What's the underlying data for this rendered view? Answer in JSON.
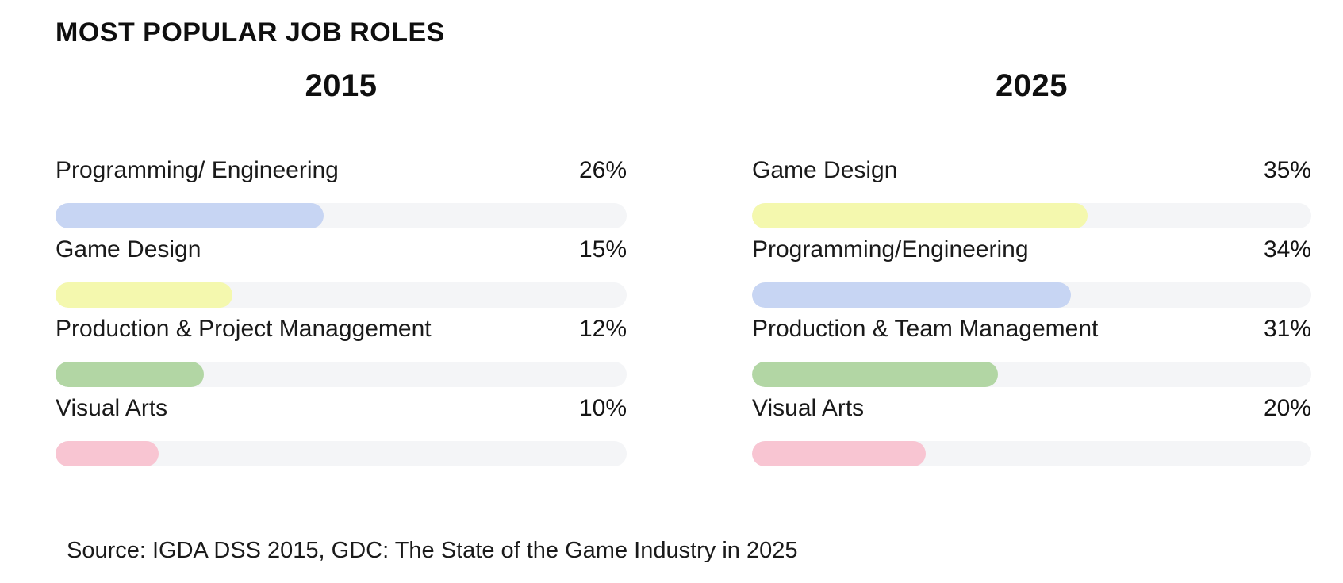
{
  "title": "MOST POPULAR JOB ROLES",
  "source": "Source: IGDA DSS 2015, GDC: The State of the Game Industry in 2025",
  "colors": {
    "text": "#161616",
    "track": "#f4f5f7",
    "blue": "#c7d5f3",
    "yellow": "#f4f8ae",
    "green": "#b2d6a4",
    "pink": "#f8c5d2"
  },
  "chart_data": [
    {
      "type": "bar",
      "title": "2015",
      "orientation": "horizontal",
      "value_suffix": "%",
      "categories": [
        "Programming/ Engineering",
        "Game Design",
        "Production & Project Managgement",
        "Visual Arts"
      ],
      "values": [
        26,
        15,
        12,
        10
      ],
      "bar_colors": [
        "#c7d5f3",
        "#f4f8ae",
        "#b2d6a4",
        "#f8c5d2"
      ],
      "track_color": "#f4f5f7",
      "fill_fractions": [
        0.47,
        0.31,
        0.26,
        0.18
      ],
      "xlim": [
        0,
        55
      ],
      "grid": false,
      "legend": false
    },
    {
      "type": "bar",
      "title": "2025",
      "orientation": "horizontal",
      "value_suffix": "%",
      "categories": [
        "Game Design",
        "Programming/Engineering",
        "Production & Team Management",
        "Visual Arts"
      ],
      "values": [
        35,
        34,
        31,
        20
      ],
      "bar_colors": [
        "#f4f8ae",
        "#c7d5f3",
        "#b2d6a4",
        "#f8c5d2"
      ],
      "track_color": "#f4f5f7",
      "fill_fractions": [
        0.6,
        0.57,
        0.44,
        0.31
      ],
      "xlim": [
        0,
        58
      ],
      "grid": false,
      "legend": false
    }
  ]
}
